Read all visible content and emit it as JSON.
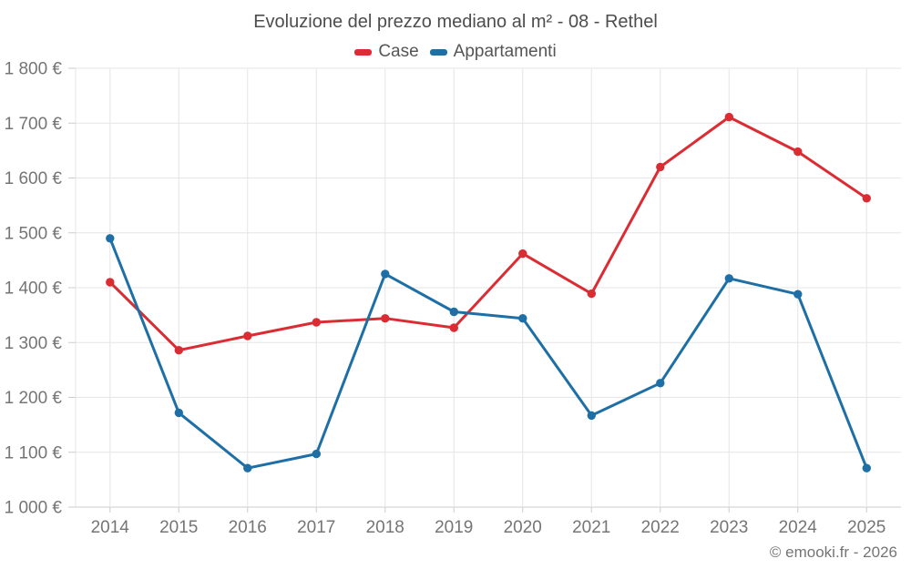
{
  "title": "Evoluzione del prezzo mediano al m² - 08 - Rethel",
  "watermark": "© emooki.fr - 2026",
  "colors": {
    "case_red": "#dc2c33",
    "appartamenti_blue": "#1d6fa5",
    "grid": "#e6e6e6",
    "axis": "#cccccc",
    "label": "#757575",
    "title_text": "#4d4d4d",
    "legend_text": "#555555"
  },
  "chart_data": {
    "type": "line",
    "title": "Evoluzione del prezzo mediano al m² - 08 - Rethel",
    "x": [
      2014,
      2015,
      2016,
      2017,
      2018,
      2019,
      2020,
      2021,
      2022,
      2023,
      2024,
      2025
    ],
    "series": [
      {
        "name": "Case",
        "color": "#dc2c33",
        "values": [
          1410,
          1286,
          1312,
          1337,
          1344,
          1327,
          1462,
          1389,
          1620,
          1711,
          1648,
          1563
        ]
      },
      {
        "name": "Appartamenti",
        "color": "#1d6fa5",
        "values": [
          1490,
          1172,
          1071,
          1097,
          1425,
          1356,
          1344,
          1167,
          1226,
          1417,
          1388,
          1071
        ]
      }
    ],
    "xlabel": "",
    "ylabel": "",
    "ylim": [
      1000,
      1800
    ],
    "y_tick_step": 100,
    "y_unit": "€",
    "grid": true,
    "legend_position": "top",
    "markers": true
  }
}
